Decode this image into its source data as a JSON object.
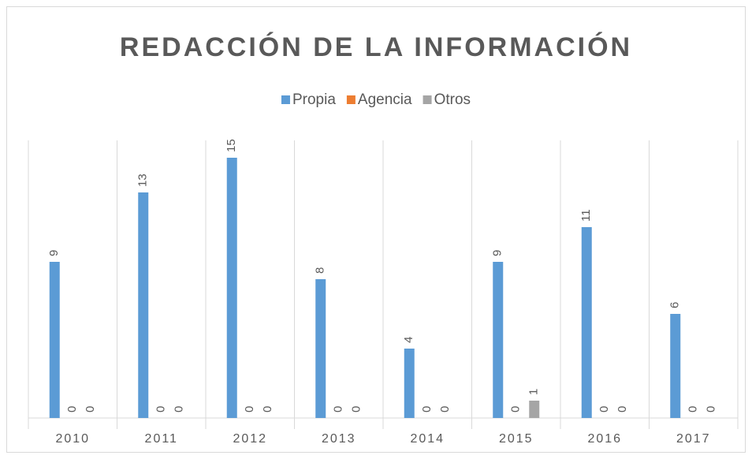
{
  "chart_data": {
    "type": "bar",
    "title": "REDACCIÓN DE LA INFORMACIÓN",
    "categories": [
      "2010",
      "2011",
      "2012",
      "2013",
      "2014",
      "2015",
      "2016",
      "2017"
    ],
    "series": [
      {
        "name": "Propia",
        "color": "#5b9bd5",
        "values": [
          9,
          13,
          15,
          8,
          4,
          9,
          11,
          6
        ]
      },
      {
        "name": "Agencia",
        "color": "#ed7d31",
        "values": [
          0,
          0,
          0,
          0,
          0,
          0,
          0,
          0
        ]
      },
      {
        "name": "Otros",
        "color": "#a5a5a5",
        "values": [
          0,
          0,
          0,
          0,
          0,
          1,
          0,
          0
        ]
      }
    ],
    "ylim": [
      0,
      16
    ],
    "legend": "top",
    "data_labels": true,
    "category_separators": true
  }
}
